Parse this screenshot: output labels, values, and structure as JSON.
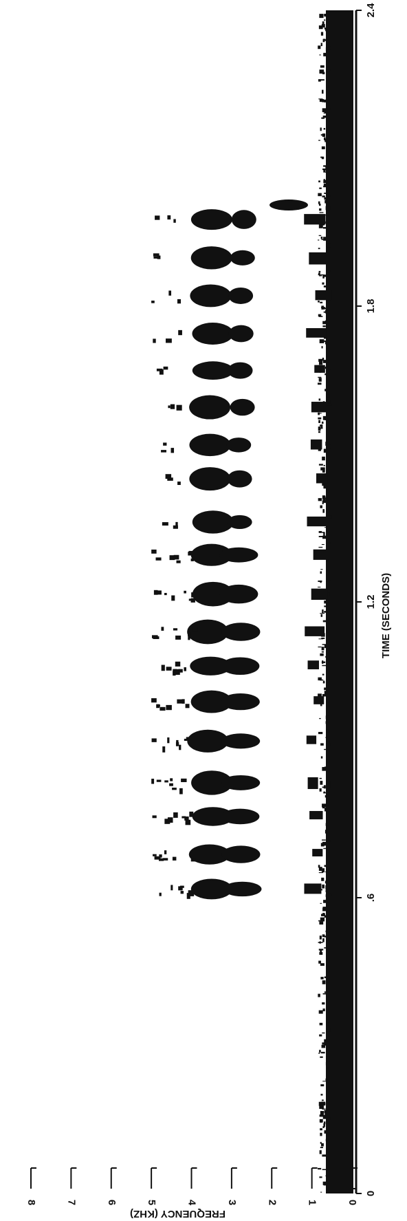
{
  "chart_data": {
    "type": "spectrogram",
    "xlabel": "TIME (SECONDS)",
    "ylabel": "FREQUENCY (KHZ)",
    "xlim": [
      0,
      2.4
    ],
    "xticks": [
      0,
      {
        "value": 0.6,
        "label": ".6"
      },
      1.2,
      1.8,
      2.4
    ],
    "ylim": [
      0,
      8
    ],
    "yticks": [
      0,
      1,
      2,
      3,
      4,
      5,
      6,
      7,
      8
    ]
  }
}
